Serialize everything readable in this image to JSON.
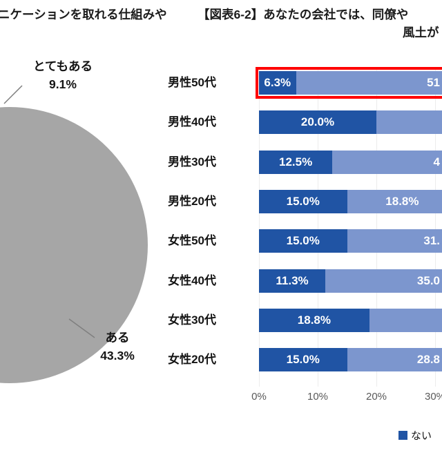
{
  "header": {
    "left_text_fragment": "ニケーションを取れる仕組みや",
    "title_line1": "【図表6-2】あなたの会社では、同僚や",
    "title_line2": "風土が"
  },
  "chart_data": [
    {
      "type": "pie",
      "slice_color": "#A6A6A6",
      "slices_visible": [
        {
          "label": "とてもある",
          "value": 9.1,
          "value_label": "9.1%"
        },
        {
          "label": "ある",
          "value": 43.3,
          "value_label": "43.3%"
        }
      ]
    },
    {
      "type": "bar",
      "variant": "horizontal-stacked",
      "categories": [
        "男性50代",
        "男性40代",
        "男性30代",
        "男性20代",
        "女性50代",
        "女性40代",
        "女性30代",
        "女性20代"
      ],
      "series": [
        {
          "name": "ない",
          "color": "#2054A4",
          "values": [
            6.3,
            20.0,
            12.5,
            15.0,
            15.0,
            11.3,
            18.8,
            15.0
          ],
          "labels": [
            "6.3%",
            "20.0%",
            "12.5%",
            "15.0%",
            "15.0%",
            "11.3%",
            "18.8%",
            "15.0%"
          ]
        },
        {
          "name": "",
          "color": "#7C96CE",
          "values": [
            null,
            null,
            null,
            18.8,
            null,
            null,
            null,
            null
          ],
          "labels": [
            "51",
            "",
            "4",
            "18.8%",
            "31.",
            "35.0",
            "",
            "28.8"
          ]
        }
      ],
      "x_ticks": [
        "0%",
        "10%",
        "20%",
        "30%"
      ],
      "x_visible_max_pct": 31,
      "highlight": {
        "row": 0,
        "category": "男性50代",
        "color": "#FF0000"
      },
      "legend": [
        {
          "label": "ない",
          "color": "#2054A4"
        }
      ]
    }
  ]
}
